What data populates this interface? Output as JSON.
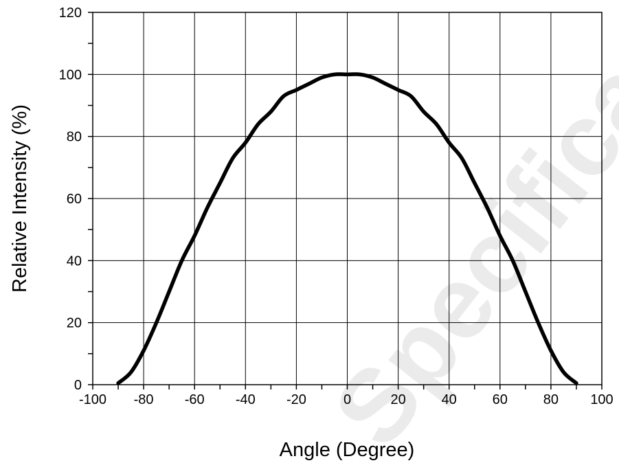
{
  "chart_data": {
    "type": "line",
    "title": "",
    "xlabel": "Angle (Degree)",
    "ylabel": "Relative Intensity (%)",
    "xlim": [
      -100,
      100
    ],
    "ylim": [
      0,
      120
    ],
    "xticks": [
      -100,
      -80,
      -60,
      -40,
      -20,
      0,
      20,
      40,
      60,
      80,
      100
    ],
    "yticks": [
      0,
      20,
      40,
      60,
      80,
      100,
      120
    ],
    "grid": true,
    "legend": "none",
    "series": [
      {
        "color": "#000000",
        "x": [
          -90,
          -85,
          -80,
          -75,
          -70,
          -65,
          -60,
          -55,
          -50,
          -45,
          -40,
          -35,
          -30,
          -25,
          -20,
          -15,
          -10,
          -5,
          0,
          5,
          10,
          15,
          20,
          25,
          30,
          35,
          40,
          45,
          50,
          55,
          60,
          65,
          70,
          75,
          80,
          85,
          90
        ],
        "y": [
          0.5,
          4,
          11,
          20,
          30,
          40,
          48,
          57,
          65,
          73,
          78,
          84,
          88,
          93,
          95,
          97,
          99,
          100,
          100,
          100,
          99,
          97,
          95,
          93,
          88,
          84,
          78,
          73,
          65,
          57,
          48,
          40,
          30,
          20,
          11,
          4,
          0.5
        ]
      }
    ]
  },
  "watermark": "Specification"
}
